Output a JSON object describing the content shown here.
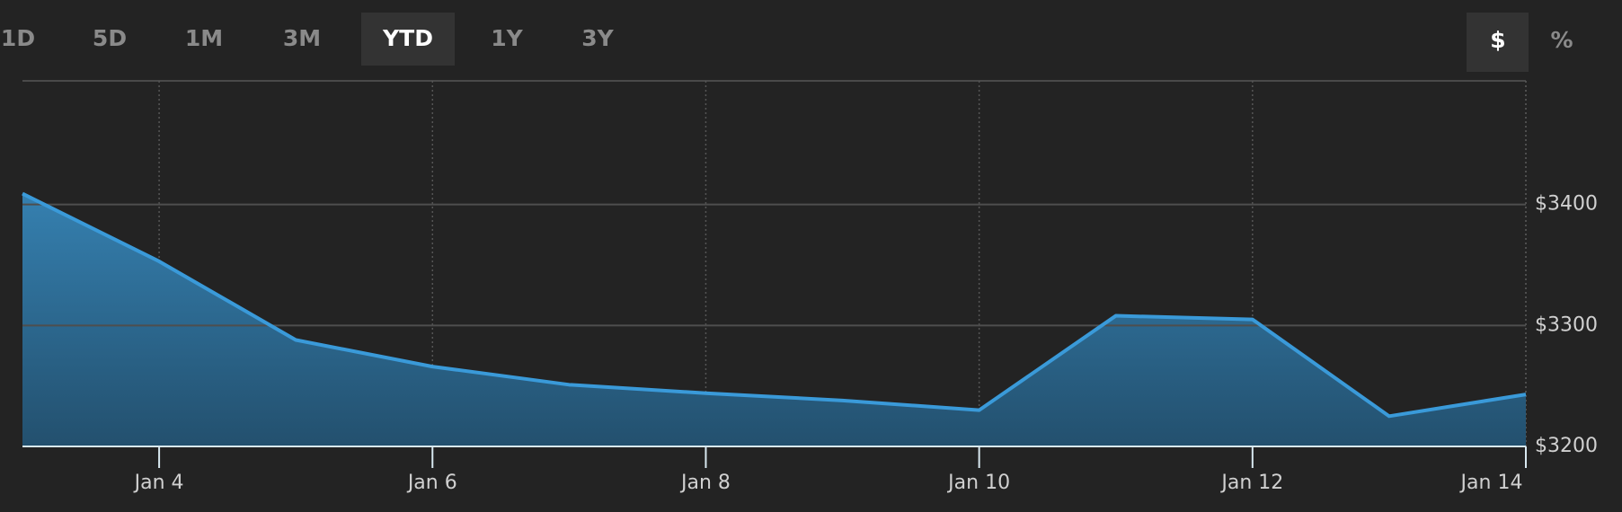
{
  "controls": {
    "ranges": [
      "1D",
      "5D",
      "1M",
      "3M",
      "YTD",
      "1Y",
      "3Y"
    ],
    "selected_range": "YTD",
    "units": [
      "$",
      "%"
    ],
    "selected_unit": "$"
  },
  "chart_data": {
    "type": "area",
    "color": "#3a9ad9",
    "x": [
      3,
      4,
      5,
      6,
      7,
      8,
      9,
      10,
      11,
      12,
      13,
      14
    ],
    "series": [
      {
        "color": "#3a9ad9",
        "values": [
          3409,
          3353,
          3288,
          3266,
          3251,
          3244,
          3238,
          3230,
          3308,
          3305,
          3225,
          3243
        ]
      }
    ],
    "xlim": [
      3,
      14
    ],
    "xticks": [
      {
        "value": 4,
        "label": "Jan 4"
      },
      {
        "value": 6,
        "label": "Jan 6"
      },
      {
        "value": 8,
        "label": "Jan 8"
      },
      {
        "value": 10,
        "label": "Jan 10"
      },
      {
        "value": 12,
        "label": "Jan 12"
      },
      {
        "value": 14,
        "label": "Jan 14"
      }
    ],
    "ylim": [
      3200,
      3500
    ],
    "yticks": [
      {
        "value": 3200,
        "label": "$3200"
      },
      {
        "value": 3300,
        "label": "$3300"
      },
      {
        "value": 3400,
        "label": "$3400"
      }
    ],
    "grid": true
  }
}
